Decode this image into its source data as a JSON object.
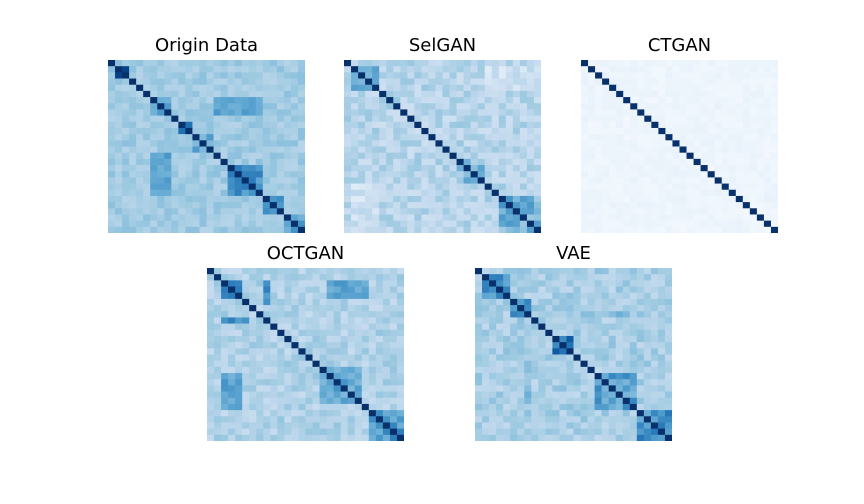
{
  "figure": {
    "colormap": "Blues",
    "colormap_stops": [
      "#f7fbff",
      "#deebf7",
      "#c6dbef",
      "#9ecae1",
      "#6baed6",
      "#4292c6",
      "#2171b5",
      "#08519c",
      "#08306b"
    ]
  },
  "chart_data": [
    {
      "type": "heatmap",
      "title": "Origin Data",
      "matrix_size": 28,
      "diagonal": 1.0,
      "base_level": 0.36,
      "noise": 0.06,
      "blocks": [
        {
          "start": 1,
          "end": 3,
          "value": 0.97
        },
        {
          "start": 6,
          "end": 9,
          "value": 0.55
        },
        {
          "start": 10,
          "end": 12,
          "value": 0.8
        },
        {
          "start": 12,
          "end": 15,
          "value": 0.5
        },
        {
          "start": 17,
          "end": 22,
          "value": 0.62
        },
        {
          "start": 22,
          "end": 25,
          "value": 0.6
        },
        {
          "start": 25,
          "end": 28,
          "value": 0.55
        }
      ],
      "bands": [
        {
          "rows": [
            15,
            22
          ],
          "cols": [
            6,
            9
          ],
          "value": 0.52
        },
        {
          "rows": [
            8,
            9
          ],
          "cols": [
            15,
            22
          ],
          "value": 0.55
        }
      ]
    },
    {
      "type": "heatmap",
      "title": "SelGAN",
      "matrix_size": 28,
      "diagonal": 1.0,
      "base_level": 0.3,
      "noise": 0.09,
      "blocks": [
        {
          "start": 1,
          "end": 5,
          "value": 0.55
        },
        {
          "start": 16,
          "end": 20,
          "value": 0.45
        },
        {
          "start": 22,
          "end": 28,
          "value": 0.48
        }
      ],
      "bands": [
        {
          "rows": [
            1,
            5
          ],
          "cols": [
            20,
            28
          ],
          "value": 0.2
        }
      ]
    },
    {
      "type": "heatmap",
      "title": "CTGAN",
      "matrix_size": 28,
      "diagonal": 1.0,
      "base_level": 0.05,
      "noise": 0.02,
      "blocks": [],
      "bands": []
    },
    {
      "type": "heatmap",
      "title": "OCTGAN",
      "matrix_size": 28,
      "diagonal": 1.0,
      "base_level": 0.32,
      "noise": 0.08,
      "blocks": [
        {
          "start": 2,
          "end": 5,
          "value": 0.75
        },
        {
          "start": 16,
          "end": 22,
          "value": 0.55
        },
        {
          "start": 23,
          "end": 28,
          "value": 0.6
        }
      ],
      "bands": [
        {
          "rows": [
            2,
            5
          ],
          "cols": [
            17,
            23
          ],
          "value": 0.55
        },
        {
          "rows": [
            17,
            23
          ],
          "cols": [
            2,
            5
          ],
          "value": 0.55
        },
        {
          "rows": [
            8,
            9
          ],
          "cols": [
            2,
            6
          ],
          "value": 0.62
        }
      ]
    },
    {
      "type": "heatmap",
      "title": "VAE",
      "matrix_size": 28,
      "diagonal": 1.0,
      "base_level": 0.34,
      "noise": 0.08,
      "blocks": [
        {
          "start": 1,
          "end": 5,
          "value": 0.6
        },
        {
          "start": 5,
          "end": 8,
          "value": 0.58
        },
        {
          "start": 11,
          "end": 14,
          "value": 0.75
        },
        {
          "start": 17,
          "end": 23,
          "value": 0.55
        },
        {
          "start": 23,
          "end": 28,
          "value": 0.62
        }
      ],
      "bands": [
        {
          "rows": [
            7,
            8
          ],
          "cols": [
            15,
            22
          ],
          "value": 0.45
        }
      ]
    }
  ]
}
